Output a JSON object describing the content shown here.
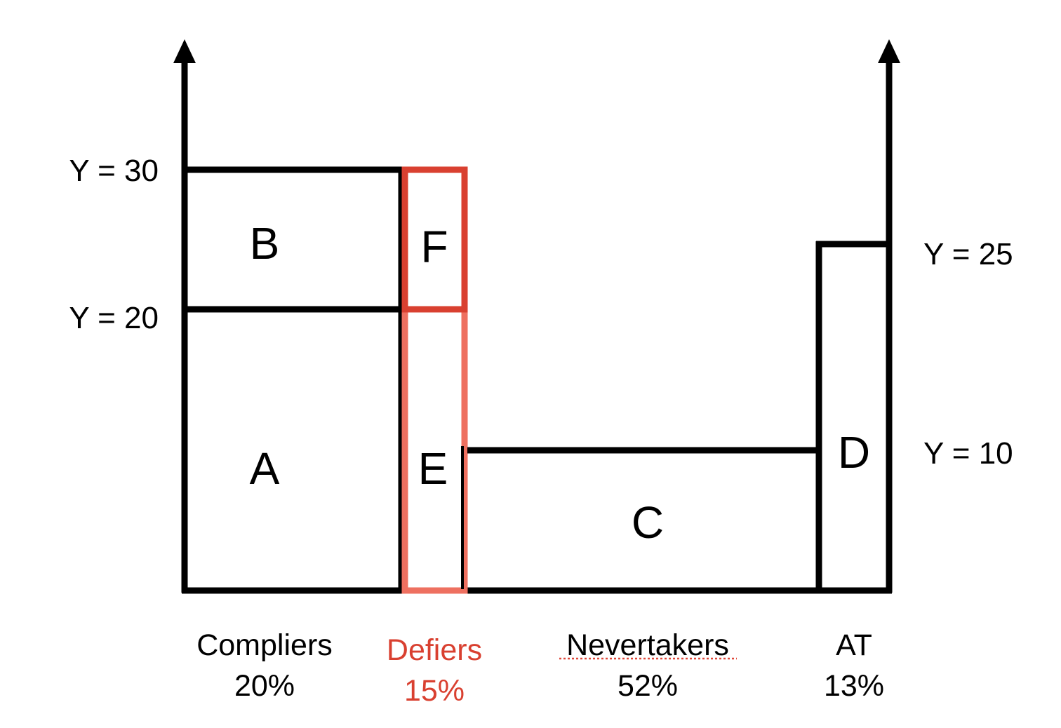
{
  "colors": {
    "line": "#000000",
    "defiers_top": "#d94030",
    "defiers_bottom": "#ee7060",
    "defiers_text": "#d94030",
    "background": "#ffffff"
  },
  "y_labels": {
    "y30": "Y = 30",
    "y20": "Y = 20",
    "y25": "Y = 25",
    "y10": "Y = 10"
  },
  "regions": {
    "a": "A",
    "b": "B",
    "c": "C",
    "d": "D",
    "e": "E",
    "f": "F"
  },
  "groups": {
    "compliers": {
      "name": "Compliers",
      "share": "20%"
    },
    "defiers": {
      "name": "Defiers",
      "share": "15%"
    },
    "nevertakers": {
      "name": "Nevertakers",
      "share": "52%"
    },
    "always_takers": {
      "name": "AT",
      "share": "13%"
    }
  }
}
